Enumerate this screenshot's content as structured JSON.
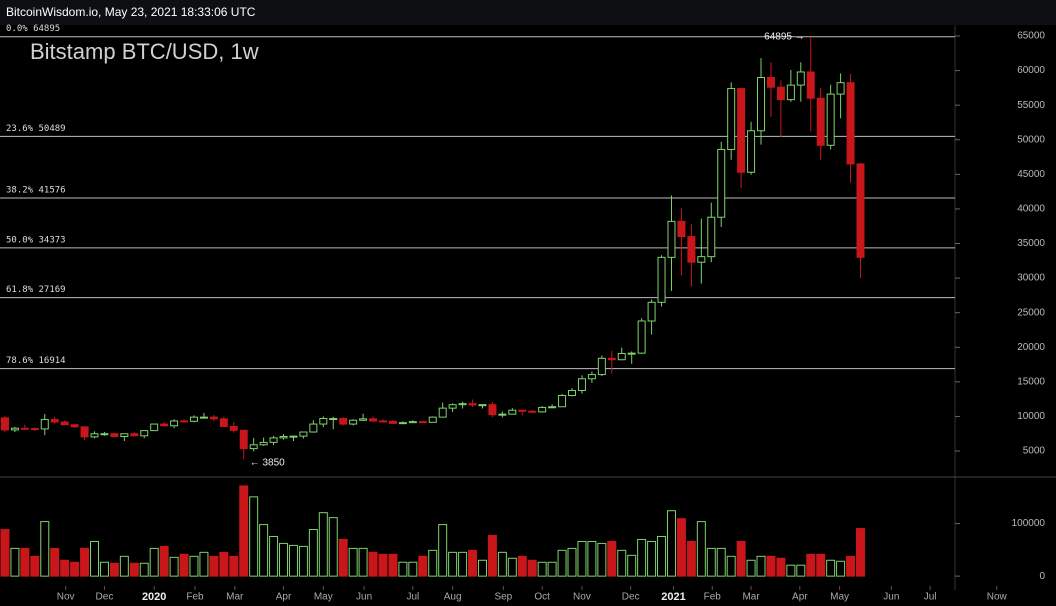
{
  "header": "BitcoinWisdom.io, May 23, 2021 18:33:06 UTC",
  "chart_data": [
    {
      "type": "candlestick",
      "title": "Bitstamp BTC/USD, 1w",
      "x": [
        0,
        1,
        2,
        3,
        4,
        5,
        6,
        7,
        8,
        9,
        10,
        11,
        12,
        13,
        14,
        15,
        16,
        17,
        18,
        19,
        20,
        21,
        22,
        23,
        24,
        25,
        26,
        27,
        28,
        29,
        30,
        31,
        32,
        33,
        34,
        35,
        36,
        37,
        38,
        39,
        40,
        41,
        42,
        43,
        44,
        45,
        46,
        47,
        48,
        49,
        50,
        51,
        52,
        53,
        54,
        55,
        56,
        57,
        58,
        59,
        60,
        61,
        62,
        63,
        64,
        65,
        66,
        67,
        68,
        69,
        70,
        71,
        72,
        73,
        74,
        75,
        76,
        77,
        78,
        79,
        80,
        81,
        82,
        83,
        84,
        85,
        86
      ],
      "open": [
        9800,
        8050,
        8300,
        8250,
        8200,
        9550,
        9200,
        8800,
        8500,
        7050,
        7500,
        7500,
        7100,
        7500,
        7200,
        7950,
        8900,
        8650,
        9350,
        9300,
        9900,
        9900,
        9650,
        8550,
        8000,
        5350,
        5900,
        6250,
        6900,
        7100,
        7150,
        7750,
        8900,
        9700,
        9700,
        8900,
        9450,
        9650,
        9350,
        9300,
        9000,
        9100,
        9250,
        9150,
        9900,
        11200,
        11700,
        11850,
        11650,
        11700,
        10250,
        10330,
        10900,
        10750,
        10660,
        11300,
        11400,
        13030,
        13750,
        15450,
        16050,
        18400,
        18200,
        19100,
        19150,
        23800,
        26500,
        33000,
        38200,
        36000,
        32300,
        33100,
        38800,
        48600,
        57400,
        45300,
        51300,
        59000,
        57600,
        55800,
        57900,
        59800,
        56000,
        49200,
        56600,
        58250,
        46500
      ],
      "high": [
        10050,
        8500,
        8800,
        8400,
        10350,
        9950,
        9450,
        8900,
        8550,
        7850,
        7750,
        7650,
        7500,
        7700,
        8000,
        8950,
        9200,
        9600,
        9600,
        10150,
        10500,
        10200,
        9950,
        9200,
        8050,
        6900,
        6950,
        7200,
        7450,
        7250,
        7750,
        9450,
        10000,
        9950,
        9900,
        9600,
        10400,
        10000,
        9600,
        9450,
        9300,
        9450,
        9300,
        10000,
        12000,
        11900,
        12100,
        12450,
        11800,
        12100,
        10700,
        11200,
        10950,
        10950,
        11500,
        11750,
        13250,
        14100,
        15950,
        16500,
        18800,
        19450,
        19950,
        19400,
        24200,
        26900,
        33300,
        41950,
        40100,
        37800,
        38600,
        40900,
        49700,
        58300,
        57500,
        52600,
        61800,
        61200,
        58600,
        60100,
        61200,
        64895,
        57500,
        57950,
        59600,
        59500,
        46650
      ],
      "low": [
        7700,
        7750,
        8050,
        7900,
        7300,
        8950,
        8700,
        8350,
        6600,
        6850,
        7200,
        7050,
        6450,
        7150,
        6850,
        7900,
        8550,
        8300,
        9150,
        9150,
        9750,
        9300,
        8450,
        7650,
        3850,
        4950,
        5750,
        5850,
        6650,
        6450,
        6800,
        7650,
        8450,
        8150,
        8700,
        8700,
        9350,
        9200,
        9250,
        8950,
        8950,
        9050,
        9050,
        9150,
        9900,
        10650,
        11150,
        11350,
        11150,
        9900,
        9850,
        10300,
        10150,
        10550,
        10550,
        11200,
        11400,
        12900,
        13300,
        14850,
        15850,
        16200,
        18100,
        17600,
        19050,
        21850,
        25900,
        28150,
        30400,
        28800,
        29200,
        32300,
        37400,
        47100,
        43000,
        44950,
        49300,
        53300,
        50400,
        55500,
        55500,
        51200,
        47100,
        48600,
        53100,
        43800,
        30000
      ],
      "close": [
        8050,
        8300,
        8250,
        8200,
        9550,
        9200,
        8800,
        8500,
        7050,
        7500,
        7500,
        7100,
        7500,
        7200,
        7950,
        8900,
        8650,
        9350,
        9300,
        9900,
        9900,
        9650,
        8550,
        8000,
        5350,
        5900,
        6250,
        6900,
        7100,
        7150,
        7750,
        8900,
        9700,
        9700,
        8900,
        9450,
        9650,
        9350,
        9300,
        9000,
        9100,
        9250,
        9150,
        9900,
        11200,
        11700,
        11850,
        11650,
        11700,
        10250,
        10330,
        10900,
        10750,
        10660,
        11300,
        11400,
        13030,
        13750,
        15450,
        16050,
        18400,
        18200,
        19100,
        19150,
        23800,
        26500,
        33000,
        38200,
        36000,
        32300,
        33100,
        38800,
        48600,
        57400,
        45300,
        51300,
        59000,
        57600,
        55800,
        57900,
        59800,
        56000,
        49200,
        56600,
        58250,
        46500,
        33000
      ],
      "up_color": "#7fd36e",
      "down_color": "#c8161b",
      "xlim": [
        -0.5,
        95.5
      ],
      "ylim": [
        1390,
        66590
      ],
      "yticks": [
        5000,
        10000,
        15000,
        20000,
        25000,
        30000,
        35000,
        40000,
        45000,
        50000,
        55000,
        60000,
        65000
      ],
      "fib_levels": [
        {
          "value": 64895,
          "label": "0.0% 64895"
        },
        {
          "value": 50489,
          "label": "23.6% 50489"
        },
        {
          "value": 41576,
          "label": "38.2% 41576"
        },
        {
          "value": 34373,
          "label": "50.0% 34373"
        },
        {
          "value": 27169,
          "label": "61.8% 27169"
        },
        {
          "value": 16914,
          "label": "78.6% 16914"
        }
      ],
      "annotations": [
        {
          "label": "64895 →",
          "x": 81,
          "value": 64895,
          "side": "left"
        },
        {
          "label": "← 3850",
          "x": 24,
          "value": 3850,
          "side": "right"
        }
      ]
    },
    {
      "type": "volume",
      "x": [
        0,
        1,
        2,
        3,
        4,
        5,
        6,
        7,
        8,
        9,
        10,
        11,
        12,
        13,
        14,
        15,
        16,
        17,
        18,
        19,
        20,
        21,
        22,
        23,
        24,
        25,
        26,
        27,
        28,
        29,
        30,
        31,
        32,
        33,
        34,
        35,
        36,
        37,
        38,
        39,
        40,
        41,
        42,
        43,
        44,
        45,
        46,
        47,
        48,
        49,
        50,
        51,
        52,
        53,
        54,
        55,
        56,
        57,
        58,
        59,
        60,
        61,
        62,
        63,
        64,
        65,
        66,
        67,
        68,
        69,
        70,
        71,
        72,
        73,
        74,
        75,
        76,
        77,
        78,
        79,
        80,
        81,
        82,
        83,
        84,
        85,
        86
      ],
      "values": [
        88700,
        52800,
        52800,
        37700,
        103800,
        52800,
        30200,
        26400,
        52800,
        66000,
        26400,
        24500,
        37700,
        24500,
        24500,
        52800,
        56600,
        35800,
        41500,
        37700,
        45300,
        37700,
        45300,
        37700,
        171700,
        150900,
        98100,
        75500,
        62300,
        58500,
        56600,
        88700,
        120800,
        111300,
        69800,
        52800,
        52800,
        45300,
        41500,
        41500,
        26400,
        26400,
        37700,
        49100,
        98100,
        45300,
        45300,
        49100,
        30200,
        77400,
        45300,
        34000,
        37700,
        30200,
        26400,
        26400,
        49100,
        52800,
        66000,
        66000,
        62300,
        66000,
        49100,
        39600,
        69800,
        66000,
        75500,
        124500,
        109400,
        66000,
        103800,
        52800,
        52800,
        37700,
        66000,
        30200,
        37700,
        37700,
        34000,
        20800,
        20800,
        41500,
        41500,
        30200,
        28300,
        37700,
        90600
      ],
      "up_color": "#7fd36e",
      "down_color": "#c8161b",
      "xlim": [
        -0.5,
        95.5
      ],
      "ylim": [
        -26400,
        186800
      ],
      "yticks": [
        0,
        100000
      ],
      "xticks": [
        {
          "value": 6.1,
          "label": "Nov"
        },
        {
          "value": 10,
          "label": "Dec"
        },
        {
          "value": 15,
          "label": "2020"
        },
        {
          "value": 19.1,
          "label": "Feb"
        },
        {
          "value": 23.1,
          "label": "Mar"
        },
        {
          "value": 28,
          "label": "Apr"
        },
        {
          "value": 32,
          "label": "May"
        },
        {
          "value": 36.1,
          "label": "Jun"
        },
        {
          "value": 41,
          "label": "Jul"
        },
        {
          "value": 45,
          "label": "Aug"
        },
        {
          "value": 50.1,
          "label": "Sep"
        },
        {
          "value": 54,
          "label": "Oct"
        },
        {
          "value": 58,
          "label": "Nov"
        },
        {
          "value": 62.9,
          "label": "Dec"
        },
        {
          "value": 67.2,
          "label": "2021"
        },
        {
          "value": 71.1,
          "label": "Feb"
        },
        {
          "value": 75,
          "label": "Mar"
        },
        {
          "value": 79.9,
          "label": "Apr"
        },
        {
          "value": 83.9,
          "label": "May"
        },
        {
          "value": 89.1,
          "label": "Jun"
        },
        {
          "value": 93,
          "label": "Jul"
        },
        {
          "value": 99.7,
          "label": "Now"
        }
      ]
    }
  ]
}
